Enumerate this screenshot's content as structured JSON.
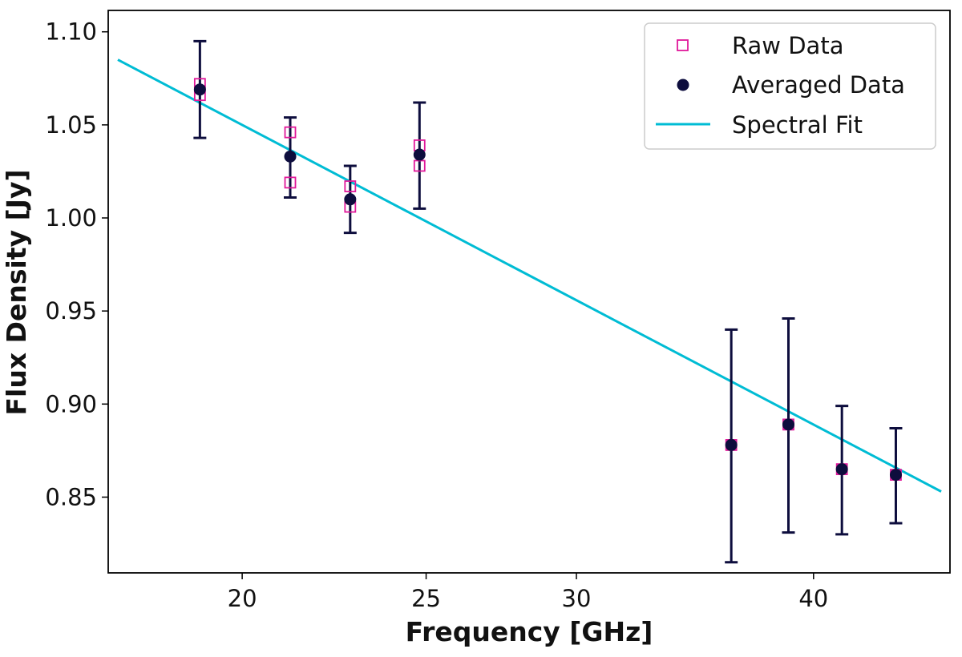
{
  "chart_data": {
    "type": "scatter",
    "title": "",
    "xlabel": "Frequency [GHz]",
    "ylabel": "Flux Density [Jy]",
    "xscale": "log",
    "xlim": [
      17,
      47.2
    ],
    "ylim": [
      0.8093,
      1.1115
    ],
    "xticks": [
      20,
      25,
      30,
      40
    ],
    "xtick_labels": [
      "20",
      "25",
      "30",
      "40"
    ],
    "yticks": [
      0.85,
      0.9,
      0.95,
      1.0,
      1.05,
      1.1
    ],
    "ytick_labels": [
      "0.85",
      "0.90",
      "0.95",
      "1.00",
      "1.05",
      "1.10"
    ],
    "grid": false,
    "legend_position": "top-right",
    "colors": {
      "raw": "#e0189a",
      "averaged": "#0d0d3d",
      "fit": "#00bcd4",
      "axis": "#000000"
    },
    "legend": [
      {
        "label": "Raw Data",
        "kind": "raw"
      },
      {
        "label": "Averaged Data",
        "kind": "averaged"
      },
      {
        "label": "Spectral Fit",
        "kind": "fit"
      }
    ],
    "series": [
      {
        "name": "Raw Data",
        "marker": "open-square",
        "points": [
          {
            "x": 19.0,
            "y": 1.072
          },
          {
            "x": 19.0,
            "y": 1.066
          },
          {
            "x": 21.2,
            "y": 1.046
          },
          {
            "x": 21.2,
            "y": 1.019
          },
          {
            "x": 22.8,
            "y": 1.017
          },
          {
            "x": 22.8,
            "y": 1.006
          },
          {
            "x": 24.8,
            "y": 1.039
          },
          {
            "x": 24.8,
            "y": 1.028
          },
          {
            "x": 36.2,
            "y": 0.878
          },
          {
            "x": 38.8,
            "y": 0.889
          },
          {
            "x": 41.4,
            "y": 0.865
          },
          {
            "x": 44.2,
            "y": 0.862
          }
        ]
      },
      {
        "name": "Averaged Data",
        "marker": "filled-circle",
        "points": [
          {
            "x": 19.0,
            "y": 1.069,
            "yerr_low": 1.043,
            "yerr_high": 1.095
          },
          {
            "x": 21.2,
            "y": 1.033,
            "yerr_low": 1.011,
            "yerr_high": 1.054
          },
          {
            "x": 22.8,
            "y": 1.01,
            "yerr_low": 0.992,
            "yerr_high": 1.028
          },
          {
            "x": 24.8,
            "y": 1.034,
            "yerr_low": 1.005,
            "yerr_high": 1.062
          },
          {
            "x": 36.2,
            "y": 0.878,
            "yerr_low": 0.815,
            "yerr_high": 0.94
          },
          {
            "x": 38.8,
            "y": 0.889,
            "yerr_low": 0.831,
            "yerr_high": 0.946
          },
          {
            "x": 41.4,
            "y": 0.865,
            "yerr_low": 0.83,
            "yerr_high": 0.899
          },
          {
            "x": 44.2,
            "y": 0.862,
            "yerr_low": 0.836,
            "yerr_high": 0.887
          }
        ]
      },
      {
        "name": "Spectral Fit",
        "marker": "line",
        "points": [
          {
            "x": 17.2,
            "y": 1.085
          },
          {
            "x": 46.7,
            "y": 0.853
          }
        ]
      }
    ]
  }
}
